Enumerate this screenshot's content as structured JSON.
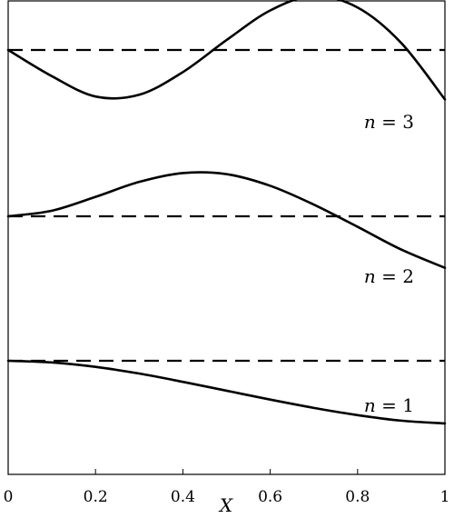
{
  "chart_data": {
    "type": "line",
    "title": "",
    "xlabel": "X",
    "ylabel": "",
    "xlim": [
      0,
      1
    ],
    "xticks": [
      "0",
      "0.2",
      "0.4",
      "0.6",
      "0.8",
      "1"
    ],
    "x": [
      0,
      0.1,
      0.2,
      0.3,
      0.4,
      0.5,
      0.6,
      0.7,
      0.8,
      0.9,
      1.0
    ],
    "series": [
      {
        "name": "",
        "label_var": "n",
        "label_eq": " = 1",
        "values": [
          0.0,
          -0.03,
          -0.11,
          -0.23,
          -0.38,
          -0.54,
          -0.7,
          -0.85,
          -0.98,
          -1.08,
          -1.13
        ]
      },
      {
        "name": "",
        "label_var": "n",
        "label_eq": " = 2",
        "values": [
          0.0,
          0.1,
          0.35,
          0.62,
          0.78,
          0.76,
          0.55,
          0.21,
          -0.19,
          -0.6,
          -0.93
        ]
      },
      {
        "name": "",
        "label_var": "n",
        "label_eq": " = 3",
        "values": [
          0.0,
          -0.45,
          -0.8,
          -0.77,
          -0.38,
          0.17,
          0.68,
          0.93,
          0.73,
          0.12,
          -0.85
        ]
      }
    ],
    "baselines": [
      0,
      0,
      0
    ],
    "grid": false,
    "legend": "none"
  }
}
